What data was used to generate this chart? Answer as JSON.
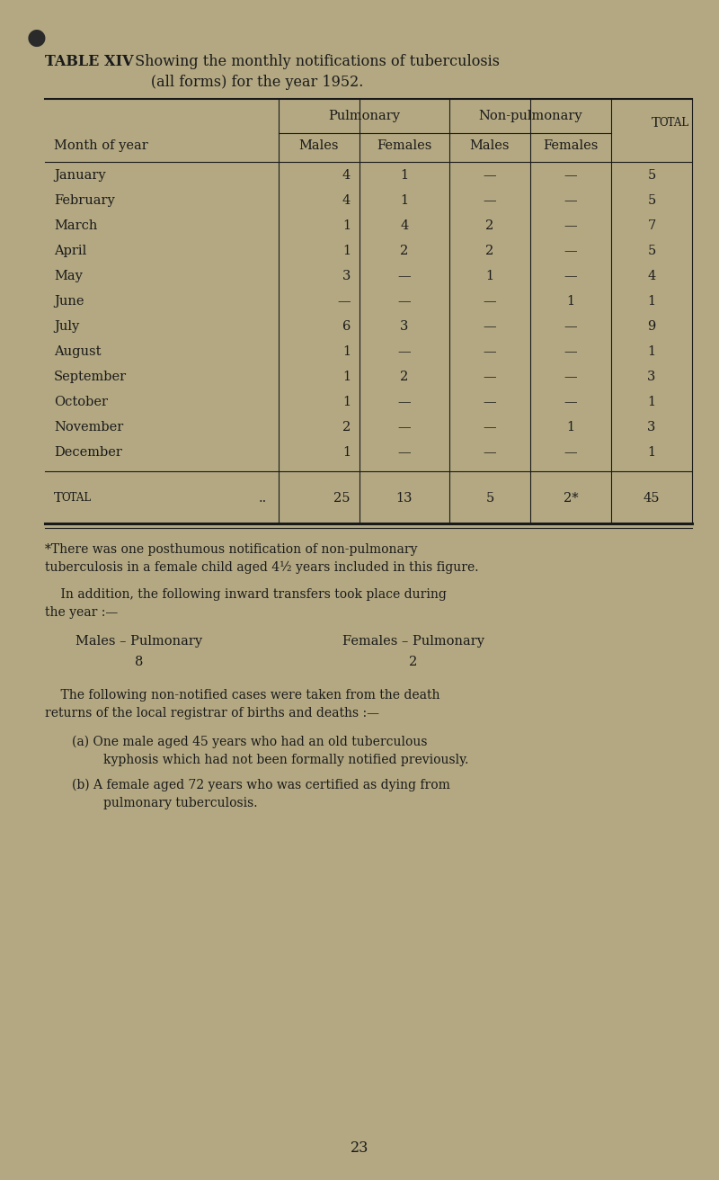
{
  "bg_color": "#b3a882",
  "text_color": "#1a1a1a",
  "title_bold": "TABLE XIV",
  "title_rest": " Showing the monthly notifications of tuberculosis",
  "title_line2": "                       (all forms) for the year 1952.",
  "months": [
    "January",
    "February",
    "March",
    "April",
    "May",
    "June",
    "July",
    "August",
    "September",
    "October",
    "November",
    "December"
  ],
  "month_dots": [
    " .. ..",
    "",
    " .. ..",
    " .. ..",
    " .. ..",
    " .. ..",
    " .. ..",
    " ..",
    "",
    " ..",
    "",
    " .."
  ],
  "pulm_males": [
    "4",
    "4",
    "1",
    "1",
    "3",
    "—",
    "6",
    "1",
    "1",
    "1",
    "2",
    "1"
  ],
  "pulm_females": [
    "1",
    "1",
    "4",
    "2",
    "—",
    "—",
    "3",
    "—",
    "2",
    "—",
    "—",
    "—"
  ],
  "nonp_males": [
    "—",
    "—",
    "2",
    "2",
    "1",
    "—",
    "—",
    "—",
    "—",
    "—",
    "—",
    "—"
  ],
  "nonp_females": [
    "—",
    "—",
    "—",
    "—",
    "—",
    "1",
    "—",
    "—",
    "—",
    "—",
    "1",
    "—"
  ],
  "totals": [
    "5",
    "5",
    "7",
    "5",
    "4",
    "1",
    "9",
    "1",
    "3",
    "1",
    "3",
    "1"
  ],
  "total_label": "Total",
  "total_pulm_males": "25",
  "total_pulm_females": "13",
  "total_nonp_males": "5",
  "total_nonp_females": "2*",
  "total_total": "45",
  "footnote1_line1": "*There was one posthumous notification of non-pulmonary",
  "footnote1_line2": "tuberculosis in a female child aged 4½ years included in this figure.",
  "footnote2_line1": "    In addition, the following inward transfers took place during",
  "footnote2_line2": "the year :—",
  "transfers_left_label": "Males – Pulmonary",
  "transfers_left_value": "8",
  "transfers_right_label": "Females – Pulmonary",
  "transfers_right_value": "2",
  "footnote3_line1": "    The following non-notified cases were taken from the death",
  "footnote3_line2": "returns of the local registrar of births and deaths :—",
  "footnote4a_line1": "(a) One male aged 45 years who had an old tuberculous",
  "footnote4a_line2": "        kyphosis which had not been formally notified previously.",
  "footnote4b_line1": "(b) A female aged 72 years who was certified as dying from",
  "footnote4b_line2": "        pulmonary tuberculosis.",
  "page_number": "23"
}
